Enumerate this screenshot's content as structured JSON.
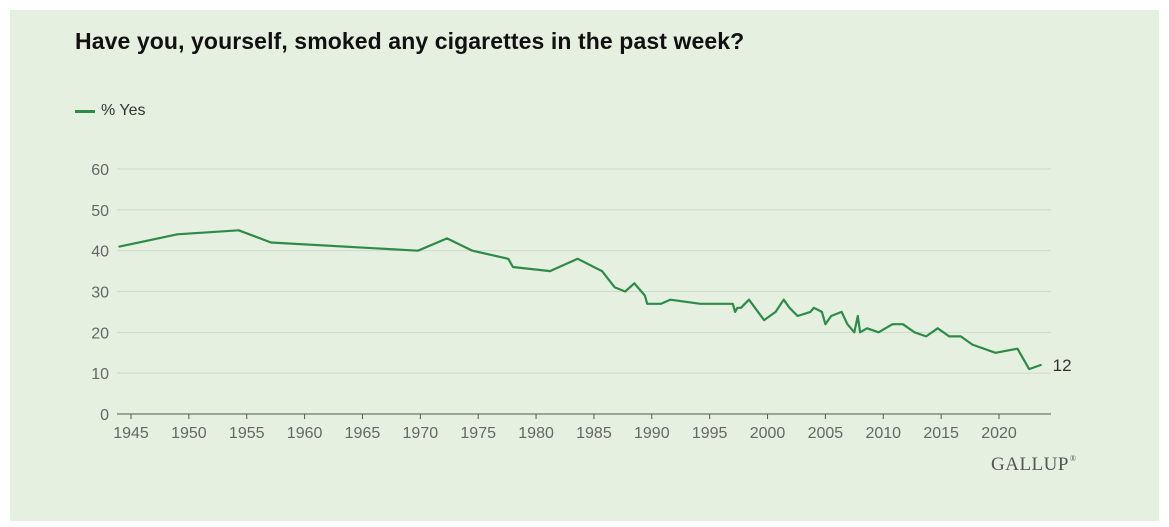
{
  "chart_data": {
    "type": "line",
    "title": "Have you, yourself, smoked any cigarettes in the past week?",
    "xlabel": "",
    "ylabel": "",
    "xlim": [
      1944,
      2025
    ],
    "ylim": [
      0,
      60
    ],
    "x_ticks": [
      1945,
      1950,
      1955,
      1960,
      1965,
      1970,
      1975,
      1980,
      1985,
      1990,
      1995,
      2000,
      2005,
      2010,
      2015,
      2020
    ],
    "y_ticks": [
      0,
      10,
      20,
      30,
      40,
      50,
      60
    ],
    "grid": true,
    "legend_position": "top-left",
    "series": [
      {
        "name": "% Yes",
        "color": "#2e8b47",
        "x": [
          1944.0,
          1949.0,
          1954.3,
          1957.1,
          1969.8,
          1972.3,
          1974.5,
          1977.6,
          1978.0,
          1981.2,
          1983.6,
          1985.7,
          1986.8,
          1987.7,
          1988.5,
          1989.4,
          1989.6,
          1990.8,
          1991.6,
          1994.2,
          1997.0,
          1997.2,
          1997.4,
          1997.7,
          1998.4,
          1999.7,
          2000.7,
          2001.4,
          2001.9,
          2002.6,
          2003.7,
          2004.0,
          2004.7,
          2005.0,
          2005.5,
          2006.4,
          2006.9,
          2007.5,
          2007.8,
          2008.0,
          2008.6,
          2009.6,
          2010.8,
          2011.7,
          2012.7,
          2013.7,
          2014.7,
          2015.7,
          2016.7,
          2017.7,
          2019.7,
          2021.6,
          2022.6,
          2023.6
        ],
        "values": [
          41,
          44,
          45,
          42,
          40,
          43,
          40,
          38,
          36,
          35,
          38,
          35,
          31,
          30,
          32,
          29,
          27,
          27,
          28,
          27,
          27,
          25,
          26,
          26,
          28,
          23,
          25,
          28,
          26,
          24,
          25,
          26,
          25,
          22,
          24,
          25,
          22,
          20,
          24,
          20,
          21,
          20,
          22,
          22,
          20,
          19,
          21,
          19,
          19,
          17,
          15,
          16,
          11,
          12
        ]
      }
    ],
    "end_label": "12"
  },
  "legend": {
    "label": "% Yes",
    "color": "#2e8b47"
  },
  "brand": "GALLUP"
}
